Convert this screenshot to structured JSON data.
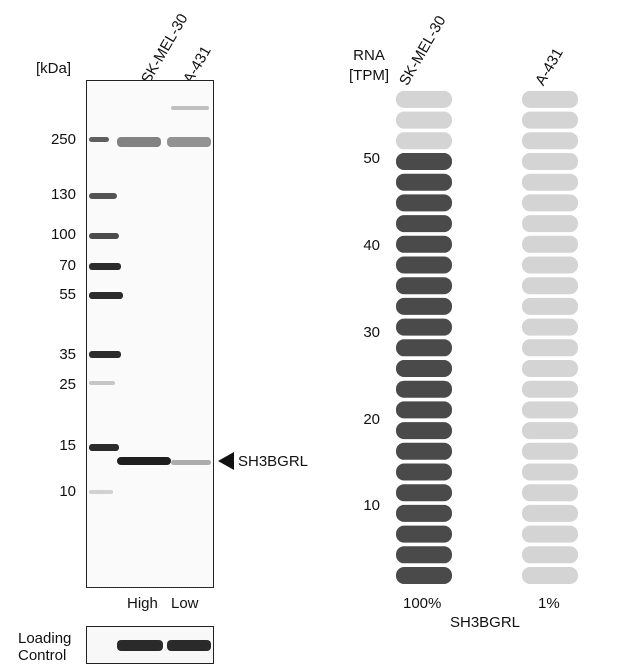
{
  "blot": {
    "unit_label": "[kDa]",
    "lanes": [
      "SK-MEL-30",
      "A-431"
    ],
    "markers": [
      "250",
      "130",
      "100",
      "70",
      "55",
      "35",
      "25",
      "15",
      "10"
    ],
    "target_label": "SH3BGRL",
    "lane_levels": [
      "High",
      "Low"
    ],
    "loading_control_line1": "Loading",
    "loading_control_line2": "Control"
  },
  "rna": {
    "title_line1": "RNA",
    "title_line2": "[TPM]",
    "columns": [
      "SK-MEL-30",
      "A-431"
    ],
    "y_ticks": [
      "50",
      "40",
      "30",
      "20",
      "10"
    ],
    "percents": [
      "100%",
      "1%"
    ],
    "gene": "SH3BGRL"
  },
  "colors": {
    "filled": "#4a4a4a",
    "empty": "#d4d4d4",
    "marker_band": "#2b2b2b"
  },
  "chart_data": {
    "type": "bar",
    "categories": [
      "SK-MEL-30",
      "A-431"
    ],
    "values": [
      50,
      0.5
    ],
    "relative_percent": [
      100,
      1
    ],
    "total_segments": 24,
    "filled_segments": [
      21,
      0
    ],
    "ylabel": "RNA [TPM]",
    "yticks": [
      10,
      20,
      30,
      40,
      50
    ]
  }
}
